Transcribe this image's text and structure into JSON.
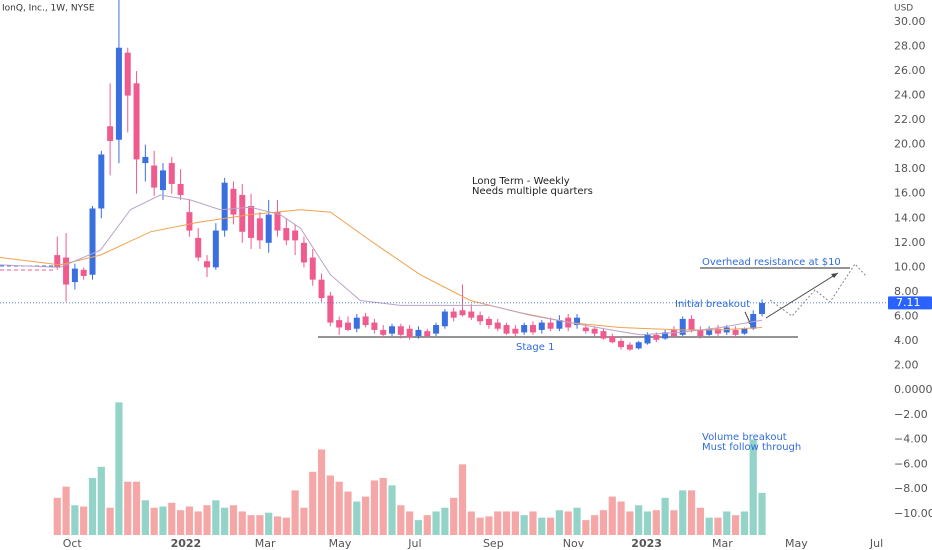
{
  "chart_data": {
    "type": "candlestick",
    "title": "IonQ, Inc., 1W, NYSE",
    "currency": "USD",
    "last_price": 7.11,
    "up_color": "#3a6fe0",
    "down_color": "#ef5b8f",
    "volume_up_color": "#93d3c8",
    "volume_down_color": "#f4a7a6",
    "xlim": [
      -6.5,
      94.3
    ],
    "xticks": [
      {
        "value": 1.7,
        "label": "Oct"
      },
      {
        "value": 14.6,
        "label": "2022"
      },
      {
        "value": 23.6,
        "label": "Mar"
      },
      {
        "value": 32.1,
        "label": "May"
      },
      {
        "value": 40.6,
        "label": "Jul"
      },
      {
        "value": 49.5,
        "label": "Sep"
      },
      {
        "value": 58.6,
        "label": "Nov"
      },
      {
        "value": 66.9,
        "label": "2023"
      },
      {
        "value": 75.5,
        "label": "Mar"
      },
      {
        "value": 83.9,
        "label": "May"
      },
      {
        "value": 93,
        "label": "Jul"
      }
    ],
    "ylim": [
      0.82,
      31.79
    ],
    "yticks": [
      {
        "value": 2,
        "label": "2.00"
      },
      {
        "value": 4,
        "label": "4.00"
      },
      {
        "value": 6,
        "label": "6.00"
      },
      {
        "value": 8,
        "label": "8.00"
      },
      {
        "value": 10,
        "label": "10.00"
      },
      {
        "value": 12,
        "label": "12.00"
      },
      {
        "value": 14,
        "label": "14.00"
      },
      {
        "value": 16,
        "label": "16.00"
      },
      {
        "value": 18,
        "label": "18.00"
      },
      {
        "value": 20,
        "label": "20.00"
      },
      {
        "value": 22,
        "label": "22.00"
      },
      {
        "value": 24,
        "label": "24.00"
      },
      {
        "value": 26,
        "label": "26.00"
      },
      {
        "value": 28,
        "label": "28.00"
      },
      {
        "value": 30,
        "label": "30.00"
      }
    ],
    "y2lim": [
      -11.7,
      0.4
    ],
    "y2ticks": [
      {
        "value": 0,
        "label": "0.0000"
      },
      {
        "value": -2,
        "label": "−2.00"
      },
      {
        "value": -4,
        "label": "−4.00"
      },
      {
        "value": -6,
        "label": "−6.00"
      },
      {
        "value": -8,
        "label": "−8.00"
      },
      {
        "value": -10,
        "label": "−10.00"
      }
    ],
    "grid": false,
    "x": [
      0,
      1,
      2,
      3,
      4,
      5,
      6,
      7,
      8,
      9,
      10,
      11,
      12,
      13,
      14,
      15,
      16,
      17,
      18,
      19,
      20,
      21,
      22,
      23,
      24,
      25,
      26,
      27,
      28,
      29,
      30,
      31,
      32,
      33,
      34,
      35,
      36,
      37,
      38,
      39,
      40,
      41,
      42,
      43,
      44,
      45,
      46,
      47,
      48,
      49,
      50,
      51,
      52,
      53,
      54,
      55,
      56,
      57,
      58,
      59,
      60,
      61,
      62,
      63,
      64,
      65,
      66,
      67,
      68,
      69,
      70,
      71,
      72,
      73,
      74,
      75,
      76,
      77,
      78,
      79,
      80
    ],
    "open": [
      11,
      10.8,
      8.8,
      9.8,
      9.4,
      14.8,
      21.5,
      20.4,
      27.5,
      25,
      18.5,
      18.3,
      16.3,
      18.5,
      16.8,
      14.5,
      12.4,
      10.5,
      10,
      13,
      16.4,
      15.9,
      15,
      14,
      12,
      14.5,
      13.2,
      13,
      12,
      10.8,
      9,
      7.7,
      5.7,
      5.5,
      5,
      6,
      5.5,
      4.9,
      4.6,
      5.2,
      5,
      4.4,
      4.8,
      4.6,
      5.2,
      6.4,
      6.5,
      6.4,
      6.1,
      5.8,
      5.5,
      5.3,
      5,
      4.7,
      5.3,
      4.9,
      5.5,
      5,
      5.9,
      5.3,
      5.1,
      5,
      4.8,
      4.4,
      4,
      3.7,
      3.4,
      3.8,
      4.5,
      4.2,
      4.9,
      4.5,
      5.8,
      4.9,
      4.5,
      5,
      4.7,
      4.9,
      4.6,
      5,
      6.2
    ],
    "high": [
      12.5,
      12.8,
      10.3,
      10,
      15,
      19.5,
      25,
      31.8,
      27.9,
      26,
      20,
      19.5,
      18.5,
      19,
      18,
      15.5,
      13.2,
      11,
      13.6,
      17.3,
      17,
      16.8,
      16,
      14.5,
      15.5,
      15.5,
      14,
      13.5,
      12.5,
      11.5,
      9.5,
      8,
      6,
      6,
      6.2,
      6.3,
      5.8,
      5.3,
      5.4,
      5.4,
      5.3,
      5.2,
      5,
      5.5,
      6.6,
      6.7,
      8.6,
      7,
      6.4,
      6,
      5.8,
      5.5,
      5.3,
      5.5,
      5.6,
      5.7,
      5.9,
      6.1,
      6.2,
      6.2,
      5.4,
      5.2,
      5,
      4.6,
      4.2,
      3.9,
      4,
      4.7,
      4.7,
      4.9,
      5.2,
      6,
      6.1,
      5.2,
      5.2,
      5.3,
      5.3,
      5.2,
      5.1,
      6.5,
      7.4
    ],
    "low": [
      9.8,
      7.2,
      8.2,
      9,
      9,
      14,
      17.5,
      18.5,
      21,
      16,
      17,
      15.8,
      15.5,
      16,
      15.5,
      12.5,
      10.5,
      9.2,
      9.8,
      12.5,
      13.5,
      12,
      11.5,
      11.5,
      11.2,
      12.5,
      11.8,
      11,
      10,
      8.5,
      7.2,
      5.2,
      4.5,
      4.8,
      4.7,
      5.1,
      4.6,
      4.3,
      4.4,
      4.2,
      4.1,
      4.2,
      4.3,
      4.4,
      5,
      5.6,
      6,
      5.7,
      5.3,
      5,
      4.8,
      4.5,
      4.4,
      4.5,
      4.5,
      4.6,
      4.8,
      4.8,
      4.8,
      5,
      4.6,
      4.4,
      4.1,
      3.8,
      3.3,
      3.2,
      3.3,
      3.7,
      3.9,
      4.1,
      4.3,
      4.4,
      4.7,
      4.2,
      4.4,
      4.4,
      4.5,
      4.3,
      4.5,
      4.9,
      6
    ],
    "close": [
      10,
      8.6,
      9.9,
      9.3,
      14.8,
      19.2,
      20.3,
      27.9,
      24,
      18.8,
      19,
      16.5,
      17.9,
      16.8,
      15.9,
      13,
      10.8,
      10,
      13,
      16.9,
      14.3,
      12.9,
      12.4,
      12.2,
      14.3,
      13,
      12.2,
      12.2,
      10.4,
      9,
      7.5,
      5.5,
      5.1,
      4.9,
      5.9,
      5.3,
      4.9,
      4.5,
      5.2,
      4.5,
      4.3,
      4.9,
      4.4,
      5.3,
      6.4,
      5.9,
      6.1,
      5.9,
      5.6,
      5.3,
      5,
      4.6,
      4.6,
      5.3,
      4.7,
      5.5,
      5,
      5.7,
      5.1,
      5.9,
      4.8,
      4.6,
      4.2,
      3.9,
      3.5,
      3.3,
      3.9,
      4.5,
      4.1,
      4.7,
      4.4,
      5.8,
      4.9,
      4.4,
      5,
      4.6,
      5.1,
      4.5,
      5,
      6.2,
      7.1
    ],
    "volume": [
      -8.7,
      -7.8,
      -9.3,
      -9.4,
      -7.1,
      -6.2,
      -9.5,
      -1,
      -7.4,
      -7.4,
      -8.9,
      -9.5,
      -9.4,
      -9.1,
      -9.7,
      -9.4,
      -9.8,
      -9.3,
      -8.9,
      -9.5,
      -9.3,
      -9.8,
      -10.1,
      -10.1,
      -9.9,
      -10.2,
      -10.3,
      -8.1,
      -9.5,
      -6.6,
      -4.8,
      -6.9,
      -7.4,
      -8.2,
      -9.0,
      -8.6,
      -7.3,
      -7.1,
      -7.7,
      -9.3,
      -9.8,
      -10.5,
      -10.1,
      -9.8,
      -9.5,
      -8.7,
      -6.0,
      -9.8,
      -10.3,
      -10.2,
      -9.8,
      -9.8,
      -9.8,
      -10.1,
      -9.8,
      -10.3,
      -10.3,
      -9.7,
      -9.8,
      -9.5,
      -10.5,
      -10.1,
      -9.7,
      -8.6,
      -9.0,
      -9.8,
      -9.3,
      -9.8,
      -9.7,
      -8.7,
      -9.7,
      -8.1,
      -8.1,
      -9.5,
      -10.3,
      -10.3,
      -9.8,
      -10.1,
      -9.8,
      -4.0,
      -8.3
    ],
    "moving_averages": [
      {
        "color": "#f2a04e",
        "x": [
          -6.5,
          0.3,
          4.9,
          10.6,
          16.2,
          21.9,
          27.6,
          31,
          35.5,
          41.2,
          46.9,
          52.6,
          58.2,
          63.9,
          70.7,
          75.3,
          80
        ],
        "values": [
          10.8,
          10.2,
          11,
          12.9,
          13.7,
          14.3,
          14.7,
          14.5,
          12.2,
          9.4,
          7.3,
          6.3,
          5.5,
          5.1,
          4.9,
          4.9,
          5.1
        ]
      },
      {
        "color": "#b9a3c9",
        "x": [
          -6.5,
          0.3,
          4.9,
          8.3,
          11.7,
          15.1,
          18.5,
          21.9,
          25.3,
          27.6,
          31,
          34.4,
          38.9,
          44.6,
          49.1,
          53.7,
          58.2,
          62.8,
          66.2,
          70.7,
          75.3,
          80
        ],
        "values": [
          10.2,
          10,
          11.4,
          14.7,
          15.9,
          15.5,
          14.7,
          14.9,
          14.3,
          13.2,
          9.4,
          7.3,
          6.9,
          6.9,
          6.9,
          6.1,
          5.5,
          4.9,
          4.5,
          4.7,
          5.1,
          5.7
        ]
      }
    ],
    "annotations": [
      "Long Term - Weekly",
      "Needs multiple quarters",
      "Overhead resistance at $10",
      "Initial breakout",
      "Stage 1",
      "Volume breakout",
      "Must follow through"
    ]
  }
}
